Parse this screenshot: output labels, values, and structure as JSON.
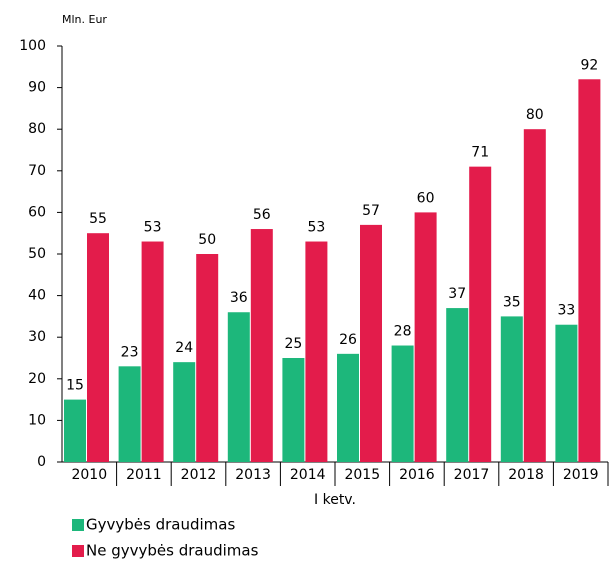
{
  "chart_data": {
    "type": "bar",
    "y_unit": "Mln. Eur",
    "x_label": "I ketv.",
    "categories": [
      "2010",
      "2011",
      "2012",
      "2013",
      "2014",
      "2015",
      "2016",
      "2017",
      "2018",
      "2019"
    ],
    "series": [
      {
        "name": "Gyvybės draudimas",
        "color": "#1db77b",
        "values": [
          15,
          23,
          24,
          36,
          25,
          26,
          28,
          37,
          35,
          33
        ]
      },
      {
        "name": "Ne gyvybės draudimas",
        "color": "#e31c4b",
        "values": [
          55,
          53,
          50,
          56,
          53,
          57,
          60,
          71,
          80,
          92
        ]
      }
    ],
    "ylim": [
      0,
      100
    ],
    "yticks": [
      0,
      10,
      20,
      30,
      40,
      50,
      60,
      70,
      80,
      90,
      100
    ],
    "grid": false,
    "legend": "bottom-left"
  }
}
